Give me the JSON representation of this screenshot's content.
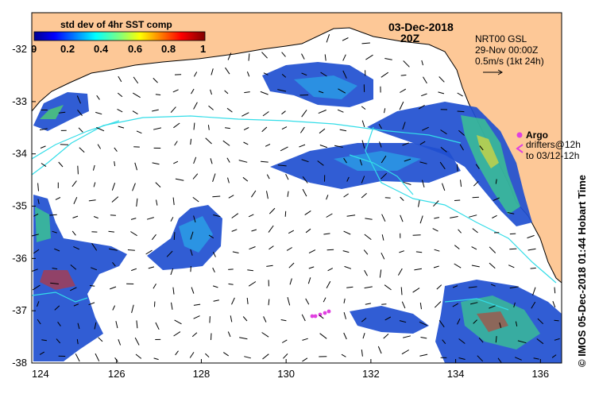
{
  "map": {
    "date_line1": "03-Dec-2018",
    "date_line2": "20Z",
    "colorbar_title": "std dev of 4hr SST comp",
    "colorbar_ticks": [
      "0",
      "0.2",
      "0.4",
      "0.6",
      "0.8",
      "1"
    ],
    "colorbar_range": [
      0,
      1
    ],
    "current_info": [
      "NRT00 GSL",
      "29-Nov 00:00Z",
      "0.5m/s (1kt 24h)"
    ],
    "argo_label": "Argo",
    "drifters_line1": "drifters@12h",
    "drifters_line2": "to 03/12-12h",
    "copyright": "© IMOS 05-Dec-2018 01:44 Hobart Time",
    "x_ticks": [
      "124",
      "126",
      "128",
      "130",
      "132",
      "134",
      "136"
    ],
    "y_ticks": [
      "-32",
      "-33",
      "-34",
      "-35",
      "-36",
      "-37",
      "-38"
    ],
    "lon_range": [
      124,
      136.5
    ],
    "lat_range": [
      -38,
      -31.3
    ],
    "colors": {
      "land": "#fdc897",
      "sea": "#ffffff",
      "contour": "#33dde8",
      "argo": "#e040e0",
      "drifter": "#e040e0",
      "arrow": "#000000"
    }
  }
}
